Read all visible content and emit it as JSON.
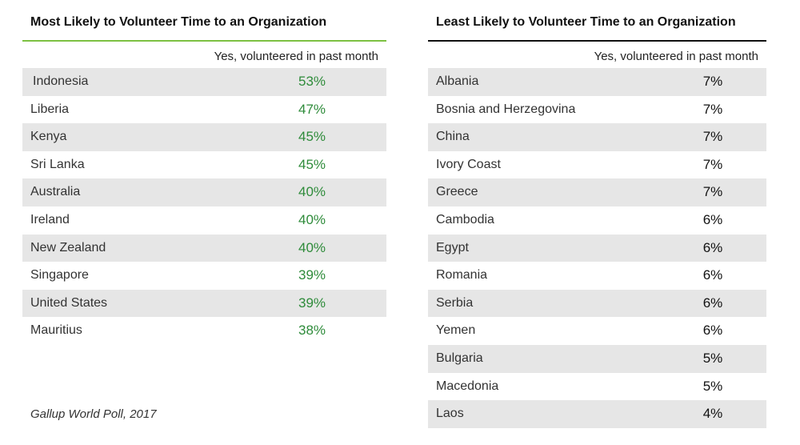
{
  "chart_data": [
    {
      "type": "table",
      "title": "Most Likely to Volunteer Time to an Organization",
      "column_header": "Yes, volunteered in past month",
      "accent_color": "#7cc142",
      "value_color": "#2e8b3a",
      "categories": [
        "Indonesia",
        "Liberia",
        "Kenya",
        "Sri Lanka",
        "Australia",
        "Ireland",
        "New Zealand",
        "Singapore",
        "United States",
        "Mauritius"
      ],
      "values": [
        "53%",
        "47%",
        "45%",
        "45%",
        "40%",
        "40%",
        "40%",
        "39%",
        "39%",
        "38%"
      ]
    },
    {
      "type": "table",
      "title": "Least Likely to Volunteer Time to an Organization",
      "column_header": "Yes, volunteered in past month",
      "accent_color": "#111111",
      "value_color": "#111111",
      "categories": [
        "Albania",
        "Bosnia and Herzegovina",
        "China",
        "Ivory Coast",
        "Greece",
        "Cambodia",
        "Egypt",
        "Romania",
        "Serbia",
        "Yemen",
        "Bulgaria",
        "Macedonia",
        "Laos"
      ],
      "values": [
        "7%",
        "7%",
        "7%",
        "7%",
        "7%",
        "6%",
        "6%",
        "6%",
        "6%",
        "6%",
        "5%",
        "5%",
        "4%"
      ]
    }
  ],
  "source": "Gallup World Poll, 2017"
}
